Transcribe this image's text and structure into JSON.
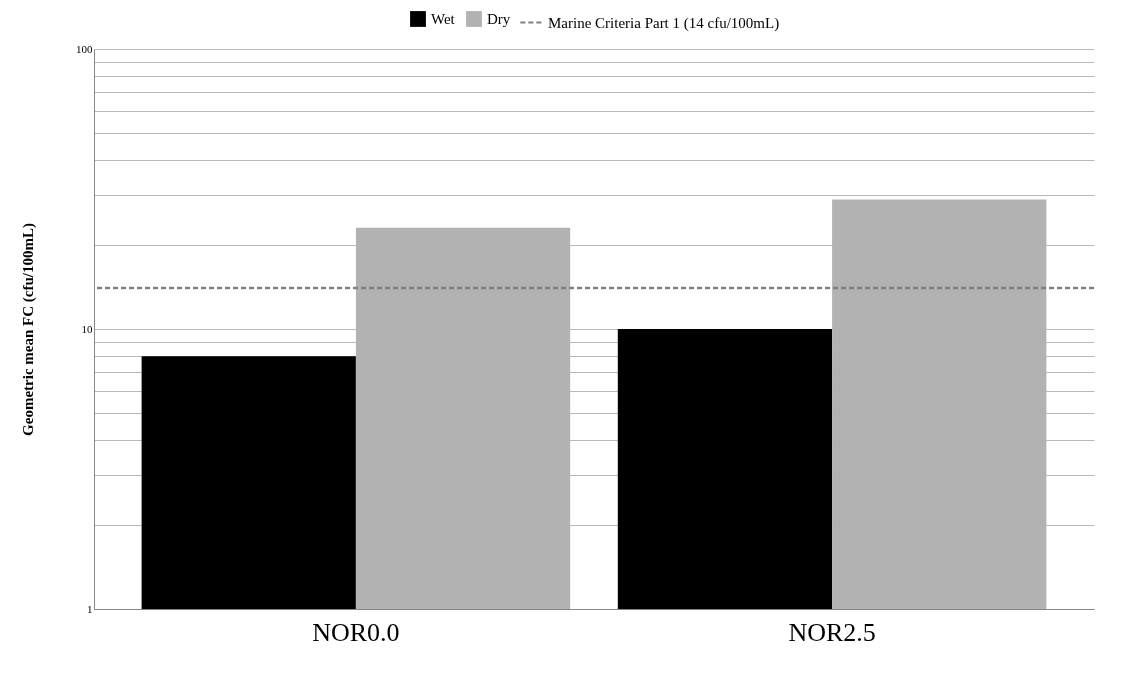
{
  "chart_data": {
    "type": "bar",
    "ylabel": "Geometric mean FC (cfu/100mL)",
    "categories": [
      "NOR0.0",
      "NOR2.5"
    ],
    "series": [
      {
        "name": "Wet",
        "color": "#000000",
        "values": [
          8,
          10
        ]
      },
      {
        "name": "Dry",
        "color": "#b2b2b2",
        "values": [
          23,
          29
        ]
      }
    ],
    "log": true,
    "ylim": [
      1,
      100
    ],
    "yticks": [
      1,
      {
        "value": 2,
        "label": null
      },
      {
        "value": 3,
        "label": null
      },
      {
        "value": 4,
        "label": null
      },
      {
        "value": 5,
        "label": null
      },
      {
        "value": 6,
        "label": null
      },
      {
        "value": 7,
        "label": null
      },
      {
        "value": 8,
        "label": null
      },
      {
        "value": 9,
        "label": null
      },
      10,
      {
        "value": 20,
        "label": null
      },
      {
        "value": 30,
        "label": null
      },
      {
        "value": 40,
        "label": null
      },
      {
        "value": 50,
        "label": null
      },
      {
        "value": 60,
        "label": null
      },
      {
        "value": 70,
        "label": null
      },
      {
        "value": 80,
        "label": null
      },
      {
        "value": 90,
        "label": null
      },
      100
    ],
    "ref_lines": [
      {
        "axis": "y",
        "value": 14,
        "label": "Marine Criteria Part 1 (14 cfu/100mL)",
        "color": "#808080",
        "line_style": "dashed"
      }
    ],
    "grid": true,
    "legend": "top"
  }
}
